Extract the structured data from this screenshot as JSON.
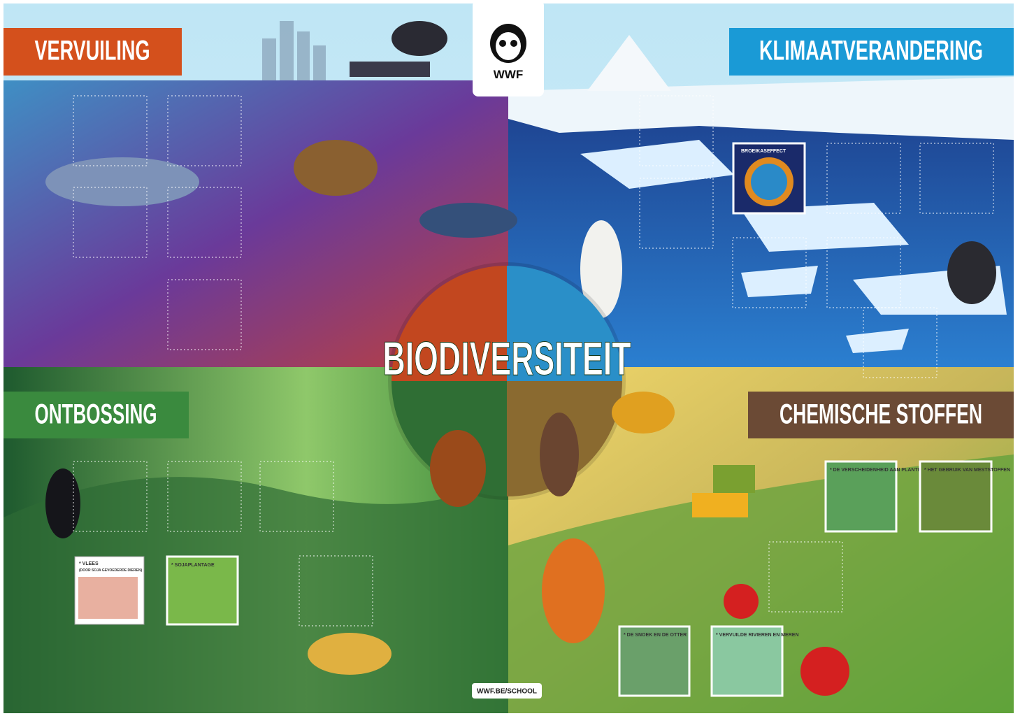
{
  "logo": {
    "text": "WWF"
  },
  "title": "BIODIVERSITEIT",
  "sections": [
    {
      "label": "VERVUILING"
    },
    {
      "label": "KLIMAATVERANDERING"
    },
    {
      "label": "ONTBOSSING"
    },
    {
      "label": "CHEMISCHE STOFFEN"
    }
  ],
  "cards": [
    {
      "label": "BROEIKASEFFECT"
    },
    {
      "label": "* VLEES",
      "note": "(DOOR SOJA GEVOEDERDE DIEREN)"
    },
    {
      "label": "* SOJAPLANTAGE"
    },
    {
      "label": "* DE VERSCHEIDENHEID AAN PLANTEN"
    },
    {
      "label": "* HET GEBRUIK VAN MESTSTOFFEN"
    },
    {
      "label": "* DE SNOEK EN DE OTTER"
    },
    {
      "label": "* VERVUILDE RIVIEREN EN MEREN"
    }
  ],
  "footer": {
    "url": "WWF.BE/SCHOOL"
  }
}
